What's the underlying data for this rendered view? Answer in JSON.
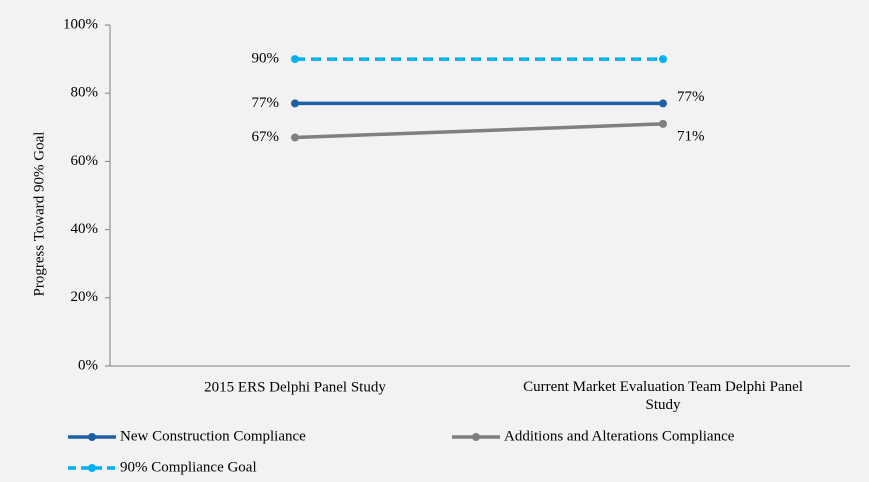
{
  "chart_data": {
    "type": "line",
    "y_label": "Progress Toward 90% Goal",
    "categories": [
      "2015 ERS Delphi Panel Study",
      "Current Market Evaluation Team Delphi Panel Study"
    ],
    "series": [
      {
        "name": "New Construction Compliance",
        "color": "#1f5fa6",
        "line_style": "solid",
        "values": [
          77,
          77
        ],
        "value_labels": [
          "77%",
          "77%"
        ]
      },
      {
        "name": "Additions and Alterations Compliance",
        "color": "#7f7f7f",
        "line_style": "solid",
        "values": [
          67,
          71
        ],
        "value_labels": [
          "67%",
          "71%"
        ]
      },
      {
        "name": "90% Compliance Goal",
        "color": "#00b0f0",
        "line_style": "dashed",
        "values": [
          90,
          90
        ],
        "value_labels": [
          "90%",
          null
        ]
      }
    ],
    "ylim": [
      0,
      100
    ],
    "yticks": [
      {
        "value": 0,
        "label": "0%"
      },
      {
        "value": 20,
        "label": "20%"
      },
      {
        "value": 40,
        "label": "40%"
      },
      {
        "value": 60,
        "label": "60%"
      },
      {
        "value": 80,
        "label": "80%"
      },
      {
        "value": 100,
        "label": "100%"
      }
    ],
    "grid": false,
    "legend": "bottom"
  }
}
